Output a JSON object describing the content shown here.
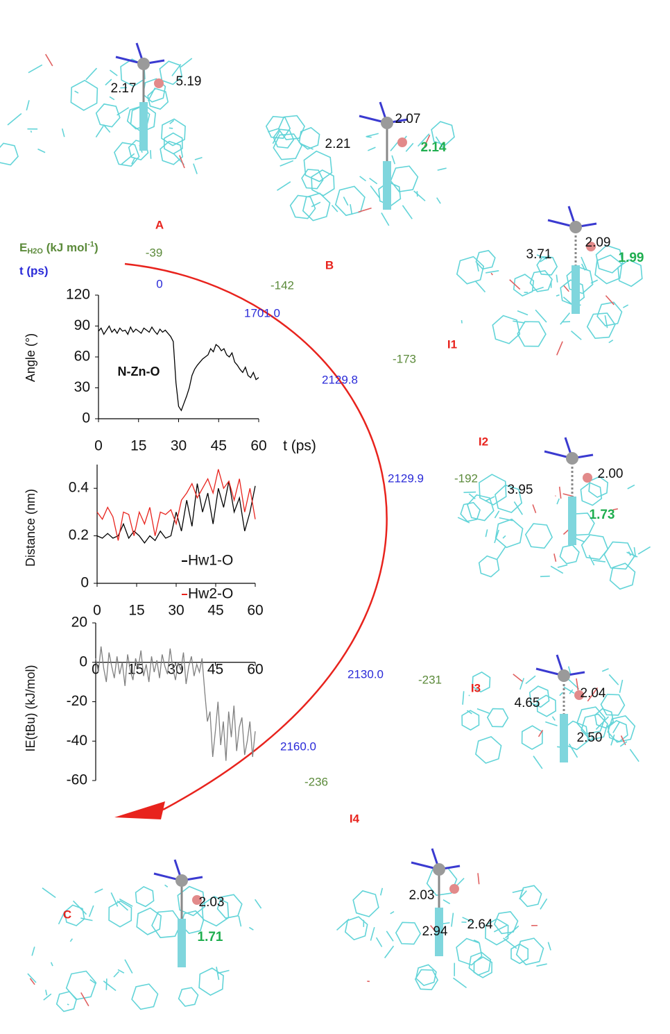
{
  "axis_headers": {
    "energy": {
      "main": "E",
      "sub": "H2O",
      "unit": " (kJ mol",
      "sup": "-1",
      "close": ")"
    },
    "time": "t (ps)"
  },
  "pathway": {
    "energies": [
      "-39",
      "-142",
      "-173",
      "-192",
      "-231",
      "-236"
    ],
    "times": [
      "0",
      "1701.0",
      "2129.8",
      "2129.9",
      "2130.0",
      "2160.0"
    ]
  },
  "panels": [
    {
      "label": "A",
      "distances": [
        {
          "text": "2.17",
          "color": "#111111"
        },
        {
          "text": "5.19",
          "color": "#111111"
        }
      ]
    },
    {
      "label": "B",
      "distances": [
        {
          "text": "2.07",
          "color": "#111111"
        },
        {
          "text": "2.21",
          "color": "#111111"
        },
        {
          "text": "2.14",
          "color": "#1fae4f"
        }
      ]
    },
    {
      "label": "I1",
      "distances": [
        {
          "text": "3.71",
          "color": "#111111"
        },
        {
          "text": "2.09",
          "color": "#111111"
        },
        {
          "text": "1.99",
          "color": "#1fae4f"
        }
      ]
    },
    {
      "label": "I2",
      "distances": [
        {
          "text": "3.95",
          "color": "#111111"
        },
        {
          "text": "2.00",
          "color": "#111111"
        },
        {
          "text": "1.73",
          "color": "#1fae4f"
        }
      ]
    },
    {
      "label": "I3",
      "distances": [
        {
          "text": "4.65",
          "color": "#111111"
        },
        {
          "text": "2.04",
          "color": "#111111"
        },
        {
          "text": "2.50",
          "color": "#111111"
        }
      ]
    },
    {
      "label": "I4",
      "distances": [
        {
          "text": "2.03",
          "color": "#111111"
        },
        {
          "text": "2.94",
          "color": "#111111"
        },
        {
          "text": "2.64",
          "color": "#111111"
        }
      ]
    },
    {
      "label": "C",
      "distances": [
        {
          "text": "2.03",
          "color": "#111111"
        },
        {
          "text": "1.71",
          "color": "#1fae4f"
        }
      ]
    }
  ],
  "chart_data": [
    {
      "type": "line",
      "ylabel": "Angle (°)",
      "xlabel": "t (ps)",
      "annotation": "N-Zn-O",
      "color": "#000000",
      "xlim": [
        0,
        60
      ],
      "xticks": [
        0,
        15,
        30,
        45,
        60
      ],
      "ylim": [
        0,
        120
      ],
      "yticks": [
        0,
        30,
        60,
        90,
        120
      ],
      "x": [
        0,
        1,
        2,
        3,
        4,
        5,
        6,
        7,
        8,
        9,
        10,
        11,
        12,
        13,
        14,
        15,
        16,
        17,
        18,
        19,
        20,
        21,
        22,
        23,
        24,
        25,
        26,
        27,
        28,
        29,
        30,
        31,
        32,
        33,
        34,
        35,
        36,
        37,
        38,
        39,
        40,
        41,
        42,
        43,
        44,
        45,
        46,
        47,
        48,
        49,
        50,
        51,
        52,
        53,
        54,
        55,
        56,
        57,
        58,
        59,
        60
      ],
      "values": [
        85,
        88,
        82,
        86,
        90,
        84,
        87,
        83,
        88,
        85,
        86,
        82,
        89,
        84,
        87,
        85,
        83,
        88,
        86,
        84,
        89,
        85,
        82,
        87,
        84,
        86,
        83,
        80,
        75,
        35,
        12,
        8,
        15,
        22,
        30,
        42,
        48,
        52,
        55,
        58,
        60,
        62,
        68,
        65,
        72,
        70,
        66,
        68,
        62,
        60,
        64,
        55,
        52,
        48,
        45,
        50,
        42,
        40,
        45,
        38,
        40
      ]
    },
    {
      "type": "line",
      "ylabel": "Distance (nm)",
      "xlim": [
        0,
        60
      ],
      "xticks": [
        0,
        15,
        30,
        45,
        60
      ],
      "ylim": [
        0,
        0.5
      ],
      "yticks": [
        0,
        0.2,
        0.4
      ],
      "x": [
        0,
        2,
        4,
        6,
        8,
        10,
        12,
        14,
        16,
        18,
        20,
        22,
        24,
        26,
        28,
        30,
        32,
        34,
        36,
        38,
        40,
        42,
        44,
        46,
        48,
        50,
        52,
        54,
        56,
        58,
        60
      ],
      "series": [
        {
          "name": "Hw1-O",
          "color": "#000000",
          "values": [
            0.2,
            0.19,
            0.21,
            0.19,
            0.2,
            0.25,
            0.19,
            0.22,
            0.2,
            0.17,
            0.2,
            0.18,
            0.22,
            0.19,
            0.2,
            0.3,
            0.22,
            0.35,
            0.24,
            0.42,
            0.3,
            0.38,
            0.25,
            0.4,
            0.32,
            0.43,
            0.3,
            0.36,
            0.22,
            0.3,
            0.41
          ]
        },
        {
          "name": "Hw2-O",
          "color": "#e8231d",
          "values": [
            0.3,
            0.27,
            0.32,
            0.28,
            0.18,
            0.3,
            0.29,
            0.2,
            0.3,
            0.25,
            0.32,
            0.2,
            0.3,
            0.29,
            0.31,
            0.25,
            0.35,
            0.38,
            0.42,
            0.36,
            0.4,
            0.44,
            0.38,
            0.48,
            0.4,
            0.43,
            0.35,
            0.44,
            0.3,
            0.4,
            0.27
          ]
        }
      ]
    },
    {
      "type": "line",
      "ylabel": "IE(tBu) (kJ/mol)",
      "color": "#808080",
      "xlim": [
        0,
        60
      ],
      "xticks": [
        0,
        15,
        30,
        45,
        60
      ],
      "ylim": [
        -60,
        20
      ],
      "yticks": [
        -60,
        -40,
        -20,
        0,
        20
      ],
      "x": [
        0,
        1,
        2,
        3,
        4,
        5,
        6,
        7,
        8,
        9,
        10,
        11,
        12,
        13,
        14,
        15,
        16,
        17,
        18,
        19,
        20,
        21,
        22,
        23,
        24,
        25,
        26,
        27,
        28,
        29,
        30,
        31,
        32,
        33,
        34,
        35,
        36,
        37,
        38,
        39,
        40,
        41,
        42,
        43,
        44,
        45,
        46,
        47,
        48,
        49,
        50,
        51,
        52,
        53,
        54,
        55,
        56,
        57,
        58,
        59,
        60
      ],
      "values": [
        2,
        -5,
        8,
        -3,
        -10,
        5,
        -2,
        -8,
        3,
        -6,
        0,
        -12,
        4,
        -4,
        -9,
        2,
        -3,
        6,
        -7,
        -1,
        -10,
        3,
        -5,
        1,
        -8,
        4,
        -2,
        -6,
        7,
        -3,
        -9,
        0,
        -4,
        5,
        -11,
        -2,
        3,
        -7,
        -1,
        -5,
        2,
        -15,
        -30,
        -25,
        -48,
        -35,
        -20,
        -42,
        -30,
        -50,
        -25,
        -38,
        -22,
        -45,
        -33,
        -28,
        -47,
        -40,
        -30,
        -48,
        -35
      ]
    }
  ]
}
